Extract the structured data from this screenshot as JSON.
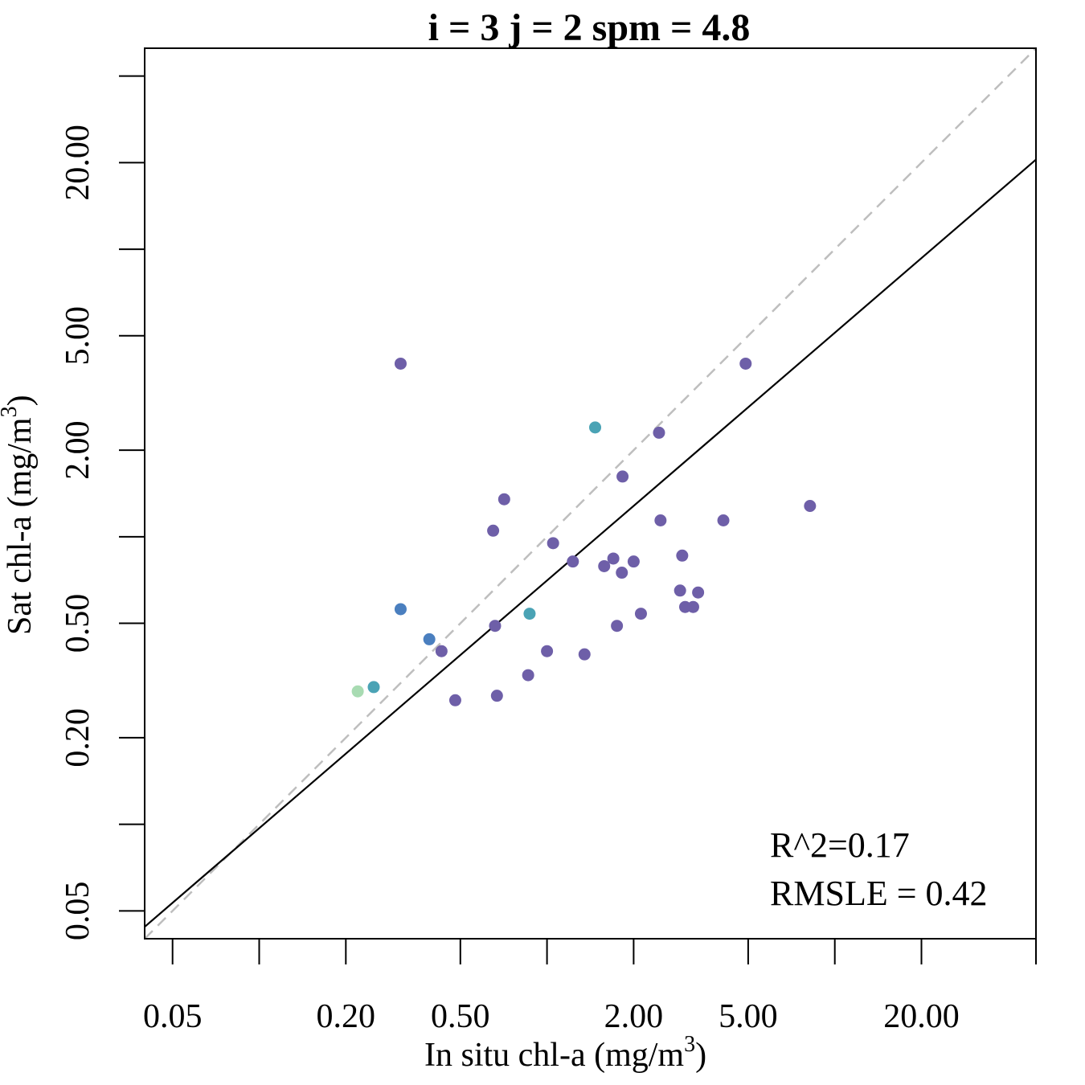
{
  "chart_data": {
    "type": "scatter",
    "title": "i = 3 j = 2 spm = 4.8",
    "xlabel": "In situ chl-a (mg/m",
    "xlabel_sup": "3",
    "xlabel_close": ")",
    "ylabel": "Sat chl-a (mg/m",
    "ylabel_sup": "3",
    "ylabel_close": ")",
    "x_scale": "log",
    "y_scale": "log",
    "xlim": [
      0.04,
      50
    ],
    "ylim": [
      0.04,
      50
    ],
    "x_ticks": [
      0.05,
      0.1,
      0.2,
      0.5,
      1,
      2,
      5,
      10,
      20,
      50
    ],
    "x_tick_labels": [
      "0.05",
      "0.20",
      "0.50",
      "2.00",
      "5.00",
      "20.00"
    ],
    "x_tick_label_values": [
      0.05,
      0.2,
      0.5,
      2,
      5,
      20
    ],
    "y_ticks": [
      0.05,
      0.1,
      0.2,
      0.5,
      1,
      2,
      5,
      10,
      20,
      40
    ],
    "y_tick_labels": [
      "0.05",
      "0.20",
      "0.50",
      "2.00",
      "5.00",
      "20.00"
    ],
    "y_tick_label_values": [
      0.05,
      0.2,
      0.5,
      2,
      5,
      20
    ],
    "grid": false,
    "reference_line": {
      "type": "1:1",
      "color": "#bebebe",
      "style": "dashed"
    },
    "fit_line": {
      "x": [
        0.04,
        50
      ],
      "y": [
        0.044,
        20.5
      ],
      "color": "#000000"
    },
    "annotations": [
      "R^2=0.17",
      "RMSLE = 0.42"
    ],
    "colors": {
      "purple": "#6e5fa8",
      "blue": "#4a7fbf",
      "teal": "#4aa3b5",
      "mint": "#a8dbb2"
    },
    "points": [
      {
        "x": 0.22,
        "y": 0.29,
        "color": "mint"
      },
      {
        "x": 0.25,
        "y": 0.3,
        "color": "teal"
      },
      {
        "x": 0.31,
        "y": 0.56,
        "color": "blue"
      },
      {
        "x": 0.31,
        "y": 4.0,
        "color": "purple"
      },
      {
        "x": 0.39,
        "y": 0.44,
        "color": "blue"
      },
      {
        "x": 0.43,
        "y": 0.4,
        "color": "purple"
      },
      {
        "x": 0.48,
        "y": 0.27,
        "color": "purple"
      },
      {
        "x": 0.65,
        "y": 1.05,
        "color": "purple"
      },
      {
        "x": 0.66,
        "y": 0.49,
        "color": "purple"
      },
      {
        "x": 0.67,
        "y": 0.28,
        "color": "purple"
      },
      {
        "x": 0.71,
        "y": 1.35,
        "color": "purple"
      },
      {
        "x": 0.86,
        "y": 0.33,
        "color": "purple"
      },
      {
        "x": 0.87,
        "y": 0.54,
        "color": "teal"
      },
      {
        "x": 1.0,
        "y": 0.4,
        "color": "purple"
      },
      {
        "x": 1.05,
        "y": 0.95,
        "color": "purple"
      },
      {
        "x": 1.23,
        "y": 0.82,
        "color": "purple"
      },
      {
        "x": 1.35,
        "y": 0.39,
        "color": "purple"
      },
      {
        "x": 1.47,
        "y": 2.4,
        "color": "teal"
      },
      {
        "x": 1.58,
        "y": 0.79,
        "color": "purple"
      },
      {
        "x": 1.7,
        "y": 0.84,
        "color": "purple"
      },
      {
        "x": 1.75,
        "y": 0.49,
        "color": "purple"
      },
      {
        "x": 1.82,
        "y": 0.75,
        "color": "purple"
      },
      {
        "x": 1.83,
        "y": 1.62,
        "color": "purple"
      },
      {
        "x": 2.0,
        "y": 0.82,
        "color": "purple"
      },
      {
        "x": 2.12,
        "y": 0.54,
        "color": "purple"
      },
      {
        "x": 2.45,
        "y": 2.3,
        "color": "purple"
      },
      {
        "x": 2.48,
        "y": 1.14,
        "color": "purple"
      },
      {
        "x": 2.9,
        "y": 0.65,
        "color": "purple"
      },
      {
        "x": 2.95,
        "y": 0.86,
        "color": "purple"
      },
      {
        "x": 3.02,
        "y": 0.57,
        "color": "purple"
      },
      {
        "x": 3.22,
        "y": 0.57,
        "color": "purple"
      },
      {
        "x": 3.35,
        "y": 0.64,
        "color": "purple"
      },
      {
        "x": 4.1,
        "y": 1.14,
        "color": "purple"
      },
      {
        "x": 4.9,
        "y": 4.0,
        "color": "purple"
      },
      {
        "x": 8.2,
        "y": 1.28,
        "color": "purple"
      }
    ]
  }
}
